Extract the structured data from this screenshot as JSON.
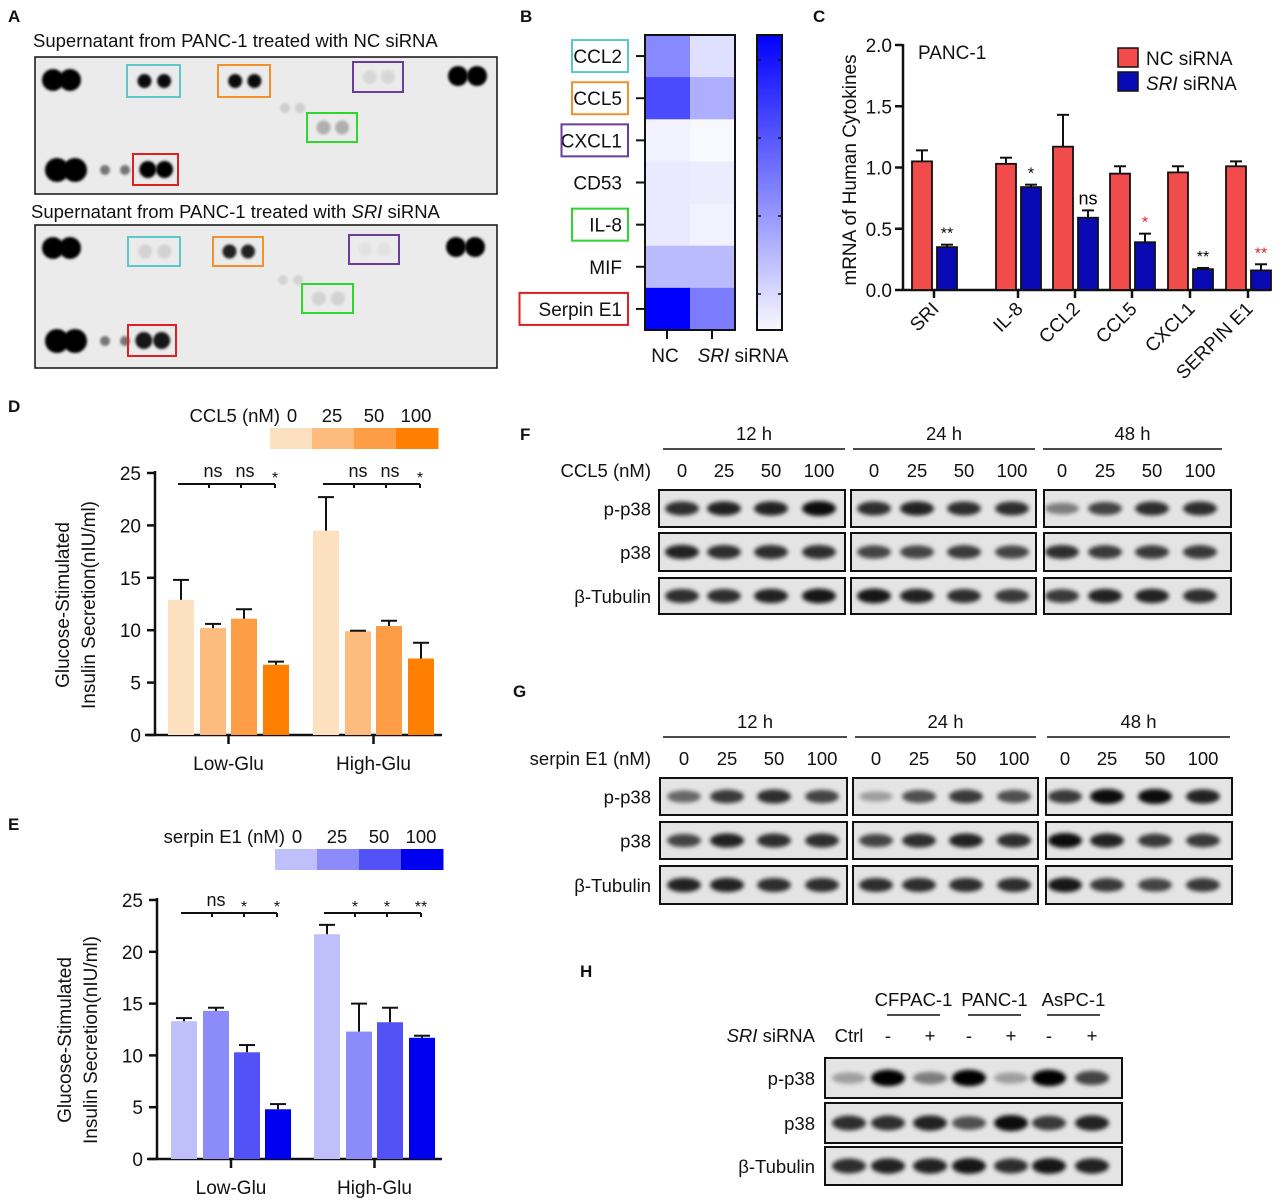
{
  "panels": {
    "A": {
      "label": "A",
      "arrays": [
        {
          "title": "Supernatant from PANC-1 treated with NC siRNA",
          "title_prefix": "",
          "title_italic": "",
          "title_suffix": "",
          "spot_intensity": {
            "reference": 1.0,
            "CCL2": 0.95,
            "CCL5": 0.95,
            "CXCL1": 0.08,
            "background": 0.12,
            "IL-8": 0.25,
            "Serpin E1": 1.0,
            "negative": 0.5
          }
        },
        {
          "title": "Supernatant from PANC-1 treated with ",
          "title_italic": "SRI",
          "title_suffix": " siRNA",
          "spot_intensity": {
            "reference": 1.0,
            "CCL2": 0.1,
            "CCL5": 0.85,
            "CXCL1": 0.0,
            "background": 0.1,
            "IL-8": 0.1,
            "Serpin E1": 0.9,
            "negative": 0.5
          }
        }
      ],
      "box_colors": {
        "CCL2": "#5cc8cc",
        "CCL5": "#f0922b",
        "CXCL1": "#6a3d9a",
        "IL-8": "#2ed62e",
        "Serpin E1": "#e02020"
      }
    },
    "B": {
      "label": "B"
    },
    "C": {
      "label": "C"
    },
    "D": {
      "label": "D"
    },
    "E": {
      "label": "E"
    },
    "F": {
      "label": "F"
    },
    "G": {
      "label": "G"
    },
    "H": {
      "label": "H"
    }
  },
  "chart_data": [
    {
      "panel": "B",
      "type": "heatmap",
      "rows": [
        "CCL2",
        "CCL5",
        "CXCL1",
        "CD53",
        "IL-8",
        "MIF",
        "Serpin E1"
      ],
      "columns": [
        "NC",
        "SRI siRNA"
      ],
      "column_labels": [
        {
          "italic": "",
          "text": "NC"
        },
        {
          "italic": "SRI",
          "text": " siRNA"
        }
      ],
      "values": [
        [
          0.45,
          0.1
        ],
        [
          0.7,
          0.3
        ],
        [
          0.02,
          0.0
        ],
        [
          0.06,
          0.05
        ],
        [
          0.06,
          0.03
        ],
        [
          0.25,
          0.25
        ],
        [
          1.0,
          0.5
        ]
      ],
      "boxed_rows": {
        "CCL2": "#5cc8cc",
        "CCL5": "#f0922b",
        "CXCL1": "#6a3d9a",
        "IL-8": "#2ed62e",
        "Serpin E1": "#e02020"
      },
      "colormap": [
        "#f8f8ff",
        "#0000ff"
      ],
      "colorbar": true
    },
    {
      "panel": "C",
      "type": "bar",
      "annotation": "PANC-1",
      "ylabel": "mRNA of  Human Cytokines",
      "ylim": [
        0,
        2.0
      ],
      "yticks": [
        "0.0",
        "0.5",
        "1.0",
        "1.5",
        "2.0"
      ],
      "categories": [
        "SRI",
        "IL-8",
        "CCL2",
        "CCL5",
        "CXCL1",
        "SERPIN E1"
      ],
      "series": [
        {
          "name": "NC siRNA",
          "color": "#f24b4b",
          "values": [
            1.05,
            1.03,
            1.17,
            0.95,
            0.96,
            1.01
          ],
          "errors": [
            0.09,
            0.05,
            0.26,
            0.06,
            0.05,
            0.04
          ]
        },
        {
          "name": "SRI siRNA",
          "name_italic": "SRI",
          "name_rest": " siRNA",
          "color": "#0a0ab4",
          "values": [
            0.35,
            0.84,
            0.59,
            0.39,
            0.17,
            0.16
          ],
          "errors": [
            0.02,
            0.02,
            0.06,
            0.07,
            0.01,
            0.05
          ]
        }
      ],
      "significance": [
        {
          "text": "**",
          "color": "#000000"
        },
        {
          "text": "*",
          "color": "#000000"
        },
        {
          "text": "ns",
          "color": "#000000"
        },
        {
          "text": "*",
          "color": "#e02020"
        },
        {
          "text": "**",
          "color": "#000000"
        },
        {
          "text": "**",
          "color": "#e02020"
        }
      ],
      "legend": "top-right"
    },
    {
      "panel": "D",
      "type": "bar",
      "legend_title": "CCL5 (nM)",
      "legend_levels": [
        "0",
        "25",
        "50",
        "100"
      ],
      "colors": [
        "#fde0c0",
        "#fdbb7e",
        "#fd9d45",
        "#ff7f00"
      ],
      "ylabel_lines": [
        "Glucose-Stimulated",
        "Insulin Secretion(nIU/ml)"
      ],
      "ylim": [
        0,
        25
      ],
      "yticks": [
        "0",
        "5",
        "10",
        "15",
        "20",
        "25"
      ],
      "categories": [
        "Low-Glu",
        "High-Glu"
      ],
      "values": [
        [
          12.9,
          10.2,
          11.1,
          6.7
        ],
        [
          19.5,
          9.9,
          10.4,
          7.3
        ]
      ],
      "errors": [
        [
          1.9,
          0.4,
          0.9,
          0.3
        ],
        [
          3.2,
          0.05,
          0.5,
          1.5
        ]
      ],
      "significance": [
        [
          "ns",
          "ns",
          "*"
        ],
        [
          "ns",
          "ns",
          "*"
        ]
      ]
    },
    {
      "panel": "E",
      "type": "bar",
      "legend_title": "serpin E1 (nM)",
      "legend_levels": [
        "0",
        "25",
        "50",
        "100"
      ],
      "colors": [
        "#bfbffc",
        "#8b8bfa",
        "#5252f7",
        "#0000f0"
      ],
      "ylabel_lines": [
        "Glucose-Stimulated",
        "Insulin Secretion(nIU/ml)"
      ],
      "ylim": [
        0,
        25
      ],
      "yticks": [
        "0",
        "5",
        "10",
        "15",
        "20",
        "25"
      ],
      "categories": [
        "Low-Glu",
        "High-Glu"
      ],
      "values": [
        [
          13.3,
          14.3,
          10.3,
          4.8
        ],
        [
          21.7,
          12.3,
          13.2,
          11.7
        ]
      ],
      "errors": [
        [
          0.3,
          0.3,
          0.7,
          0.5
        ],
        [
          0.9,
          2.7,
          1.4,
          0.2
        ]
      ],
      "significance": [
        [
          "ns",
          "*",
          "*"
        ],
        [
          "*",
          "*",
          "**"
        ]
      ]
    }
  ],
  "blots": {
    "F": {
      "timepoints": [
        "12 h",
        "24 h",
        "48 h"
      ],
      "treatment_label": "CCL5 (nM)",
      "lanes": [
        "0",
        "25",
        "50",
        "100"
      ],
      "rows": [
        {
          "label": "p-p38",
          "intensity": [
            [
              0.8,
              0.85,
              0.85,
              0.95
            ],
            [
              0.8,
              0.85,
              0.8,
              0.8
            ],
            [
              0.45,
              0.7,
              0.8,
              0.8
            ]
          ]
        },
        {
          "label": "p38",
          "intensity": [
            [
              0.85,
              0.8,
              0.8,
              0.8
            ],
            [
              0.7,
              0.7,
              0.75,
              0.7
            ],
            [
              0.8,
              0.75,
              0.75,
              0.75
            ]
          ]
        },
        {
          "label": "β-Tubulin",
          "intensity": [
            [
              0.8,
              0.8,
              0.85,
              0.9
            ],
            [
              0.9,
              0.85,
              0.8,
              0.75
            ],
            [
              0.75,
              0.85,
              0.85,
              0.8
            ]
          ]
        }
      ]
    },
    "G": {
      "timepoints": [
        "12 h",
        "24 h",
        "48 h"
      ],
      "treatment_label": "serpin E1 (nM)",
      "lanes": [
        "0",
        "25",
        "50",
        "100"
      ],
      "rows": [
        {
          "label": "p-p38",
          "intensity": [
            [
              0.55,
              0.75,
              0.8,
              0.7
            ],
            [
              0.3,
              0.65,
              0.75,
              0.65
            ],
            [
              0.75,
              0.95,
              0.95,
              0.85
            ]
          ]
        },
        {
          "label": "p38",
          "intensity": [
            [
              0.7,
              0.85,
              0.8,
              0.8
            ],
            [
              0.7,
              0.8,
              0.85,
              0.8
            ],
            [
              0.95,
              0.85,
              0.75,
              0.75
            ]
          ]
        },
        {
          "label": "β-Tubulin",
          "intensity": [
            [
              0.85,
              0.85,
              0.8,
              0.8
            ],
            [
              0.8,
              0.8,
              0.8,
              0.8
            ],
            [
              0.9,
              0.75,
              0.7,
              0.75
            ]
          ]
        }
      ]
    },
    "H": {
      "cell_lines": [
        "CFPAC-1",
        "PANC-1",
        "AsPC-1"
      ],
      "treatment_italic": "SRI",
      "treatment_rest": " siRNA",
      "lanes": [
        "Ctrl",
        "-",
        "+",
        "-",
        "+",
        "-",
        "+"
      ],
      "rows": [
        {
          "label": "p-p38",
          "intensity": [
            [
              0.3,
              1.0,
              0.45,
              1.0,
              0.3,
              1.0,
              0.7
            ]
          ]
        },
        {
          "label": "p38",
          "intensity": [
            [
              0.8,
              0.8,
              0.85,
              0.65,
              0.95,
              0.75,
              0.85
            ]
          ]
        },
        {
          "label": "β-Tubulin",
          "intensity": [
            [
              0.8,
              0.85,
              0.85,
              0.9,
              0.8,
              0.9,
              0.85
            ]
          ]
        }
      ]
    }
  }
}
